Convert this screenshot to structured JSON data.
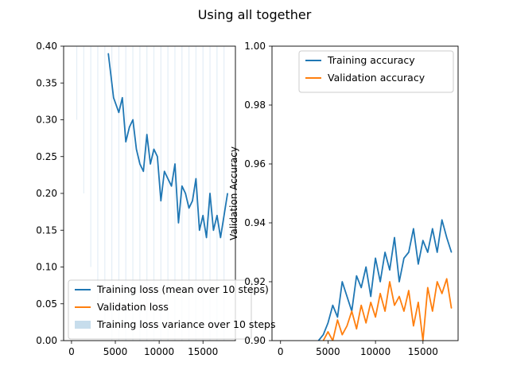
{
  "figure": {
    "title": "Using all together"
  },
  "colors": {
    "train": "#1f77b4",
    "val": "#ff7f0e",
    "variance": "#1f77b4"
  },
  "chart_data": [
    {
      "type": "line",
      "title": "",
      "xlabel": "",
      "ylabel": "",
      "xlim": [
        -900,
        18700
      ],
      "ylim": [
        0.0,
        0.4
      ],
      "xticks": [
        0,
        5000,
        10000,
        15000
      ],
      "xtick_labels": [
        "0",
        "5000",
        "10000",
        "15000"
      ],
      "yticks": [
        0.0,
        0.05,
        0.1,
        0.15,
        0.2,
        0.25,
        0.3,
        0.35,
        0.4
      ],
      "ytick_labels": [
        "0.00",
        "0.05",
        "0.10",
        "0.15",
        "0.20",
        "0.25",
        "0.30",
        "0.35",
        "0.40"
      ],
      "grid": false,
      "legend_position": "lower-left",
      "legend": [
        {
          "kind": "line",
          "color": "#1f77b4",
          "label": "Training loss (mean over 10 steps)"
        },
        {
          "kind": "line",
          "color": "#ff7f0e",
          "label": "Validation loss"
        },
        {
          "kind": "patch",
          "color": "#1f77b4",
          "label": "Training loss variance over 10 steps"
        }
      ],
      "series": [
        {
          "name": "Training loss (mean over 10 steps)",
          "color": "#1f77b4",
          "x": [
            4200,
            4800,
            5400,
            5800,
            6200,
            6600,
            7000,
            7400,
            7800,
            8200,
            8600,
            9000,
            9400,
            9800,
            10200,
            10600,
            11000,
            11400,
            11800,
            12200,
            12600,
            13000,
            13400,
            13800,
            14200,
            14600,
            15000,
            15400,
            15800,
            16200,
            16600,
            17000,
            17400,
            17800
          ],
          "y": [
            0.39,
            0.33,
            0.31,
            0.33,
            0.27,
            0.29,
            0.3,
            0.26,
            0.24,
            0.23,
            0.28,
            0.24,
            0.26,
            0.25,
            0.19,
            0.23,
            0.22,
            0.21,
            0.24,
            0.16,
            0.21,
            0.2,
            0.18,
            0.19,
            0.22,
            0.15,
            0.17,
            0.14,
            0.2,
            0.15,
            0.17,
            0.14,
            0.17,
            0.2
          ]
        },
        {
          "name": "Training loss variance over 10 steps",
          "color": "#1f77b4",
          "x": [
            600,
            1400,
            2200,
            3000,
            3800,
            4600,
            5400,
            6200,
            7000,
            7800,
            8600,
            9400,
            10200,
            11000,
            11800,
            12600,
            13400,
            14200,
            15000,
            15800,
            16600,
            17400
          ],
          "low": [
            0.3,
            0.2,
            0.1,
            0.05,
            0.02,
            0.0,
            0.0,
            0.0,
            0.0,
            0.0,
            0.0,
            0.0,
            0.0,
            0.0,
            0.0,
            0.0,
            0.0,
            0.0,
            0.0,
            0.0,
            0.0,
            0.0
          ]
        }
      ]
    },
    {
      "type": "line",
      "title": "",
      "xlabel": "",
      "ylabel": "Validation Accuracy",
      "xlim": [
        -900,
        18700
      ],
      "ylim": [
        0.9,
        1.0
      ],
      "xticks": [
        0,
        5000,
        10000,
        15000
      ],
      "xtick_labels": [
        "0",
        "5000",
        "10000",
        "15000"
      ],
      "yticks": [
        0.9,
        0.92,
        0.94,
        0.96,
        0.98,
        1.0
      ],
      "ytick_labels": [
        "0.90",
        "0.92",
        "0.94",
        "0.96",
        "0.98",
        "1.00"
      ],
      "grid": false,
      "legend_position": "upper-right",
      "legend": [
        {
          "kind": "line",
          "color": "#1f77b4",
          "label": "Training accuracy"
        },
        {
          "kind": "line",
          "color": "#ff7f0e",
          "label": "Validation accuracy"
        }
      ],
      "series": [
        {
          "name": "Training accuracy",
          "color": "#1f77b4",
          "x": [
            4000,
            4500,
            5000,
            5500,
            6000,
            6500,
            7000,
            7500,
            8000,
            8500,
            9000,
            9500,
            10000,
            10500,
            11000,
            11500,
            12000,
            12500,
            13000,
            13500,
            14000,
            14500,
            15000,
            15500,
            16000,
            16500,
            17000,
            17500,
            18000
          ],
          "y": [
            0.9,
            0.902,
            0.906,
            0.912,
            0.908,
            0.92,
            0.915,
            0.91,
            0.922,
            0.918,
            0.925,
            0.915,
            0.928,
            0.92,
            0.93,
            0.924,
            0.935,
            0.92,
            0.928,
            0.93,
            0.938,
            0.926,
            0.934,
            0.93,
            0.938,
            0.93,
            0.941,
            0.935,
            0.93
          ]
        },
        {
          "name": "Validation accuracy",
          "color": "#ff7f0e",
          "x": [
            4500,
            5000,
            5500,
            6000,
            6500,
            7000,
            7500,
            8000,
            8500,
            9000,
            9500,
            10000,
            10500,
            11000,
            11500,
            12000,
            12500,
            13000,
            13500,
            14000,
            14500,
            15000,
            15500,
            16000,
            16500,
            17000,
            17500,
            18000
          ],
          "y": [
            0.9,
            0.903,
            0.9,
            0.907,
            0.902,
            0.905,
            0.91,
            0.904,
            0.912,
            0.906,
            0.913,
            0.908,
            0.916,
            0.91,
            0.92,
            0.912,
            0.915,
            0.91,
            0.917,
            0.905,
            0.913,
            0.9,
            0.918,
            0.91,
            0.92,
            0.916,
            0.921,
            0.911
          ]
        }
      ]
    }
  ]
}
